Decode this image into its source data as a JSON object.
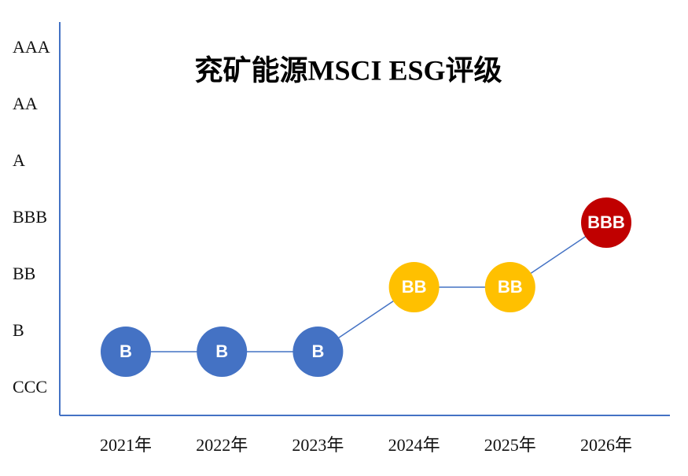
{
  "chart_data": {
    "type": "line",
    "title": "兖矿能源MSCI ESG评级",
    "yticks": [
      "CCC",
      "B",
      "BB",
      "BBB",
      "A",
      "AA",
      "AAA"
    ],
    "categories": [
      "2021年",
      "2022年",
      "2023年",
      "2024年",
      "2025年",
      "2026年"
    ],
    "values": [
      "B",
      "B",
      "B",
      "BB",
      "BB",
      "BBB"
    ],
    "point_colors": [
      "#4472c4",
      "#4472c4",
      "#4472c4",
      "#ffc000",
      "#ffc000",
      "#c00000"
    ],
    "line_color": "#4472c4"
  }
}
